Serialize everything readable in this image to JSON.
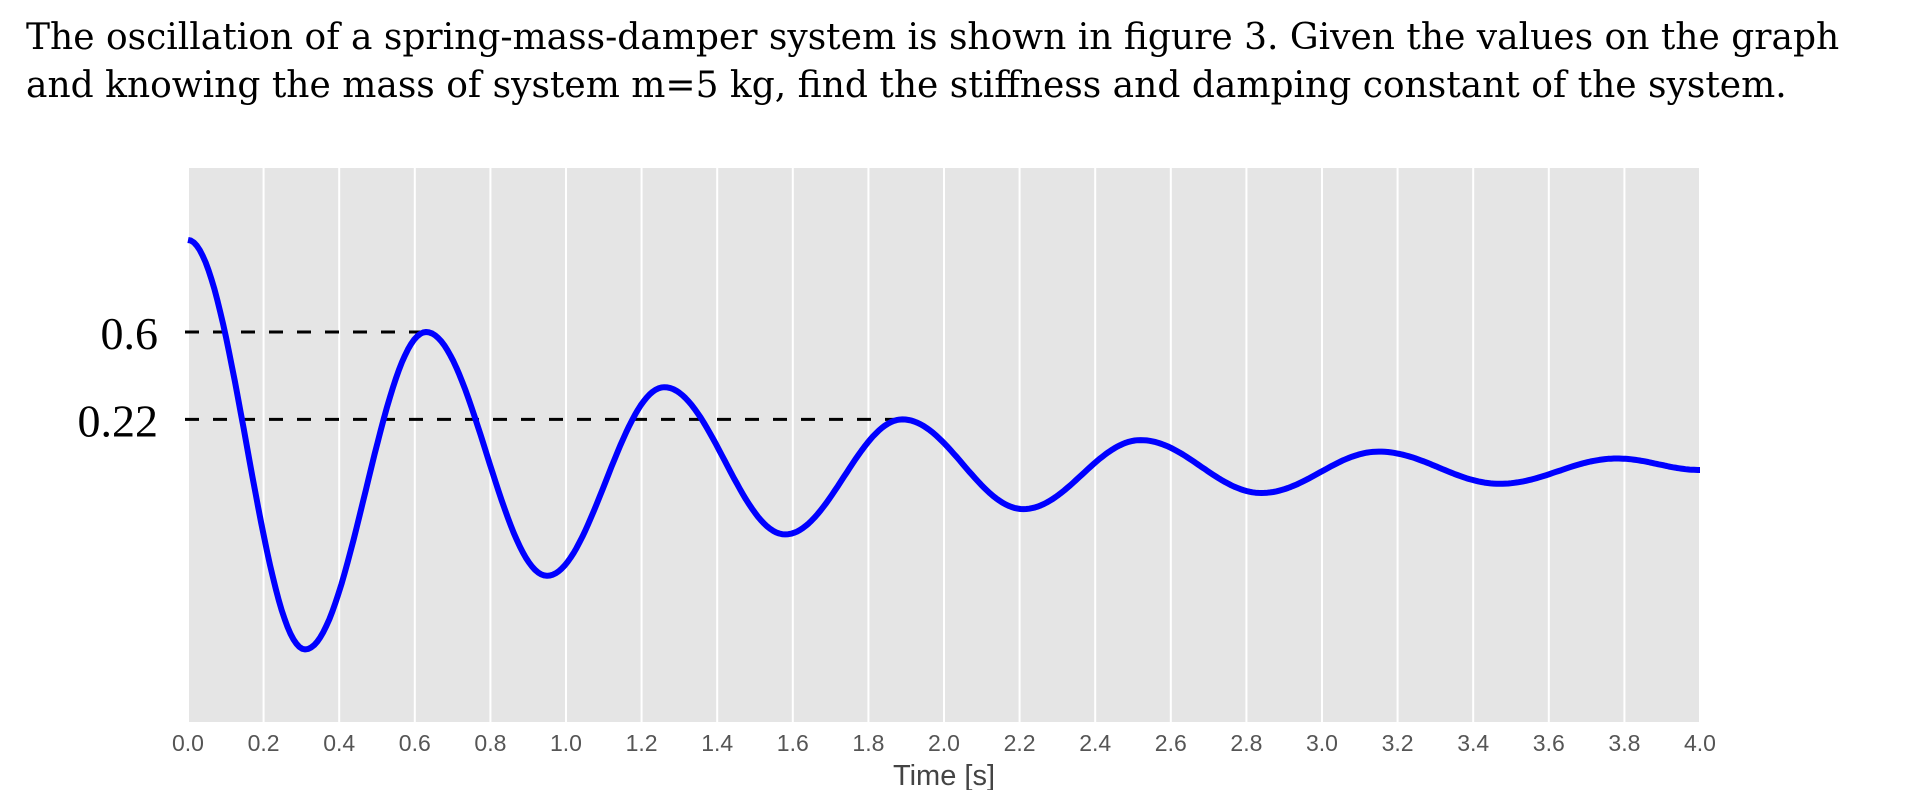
{
  "problem": {
    "line1": "The oscillation of a spring-mass-damper system is shown in figure 3.  Given the values on the graph",
    "line2": "and knowing the mass of system m=5 kg, find the stiffness and damping constant of the system."
  },
  "chart_data": {
    "type": "line",
    "title": "",
    "xlabel": "Time [s]",
    "ylabel": "",
    "xlim": [
      0,
      4
    ],
    "x_ticks": [
      "0.0",
      "0.2",
      "0.4",
      "0.6",
      "0.8",
      "1.0",
      "1.2",
      "1.4",
      "1.6",
      "1.8",
      "2.0",
      "2.2",
      "2.4",
      "2.6",
      "2.8",
      "3.0",
      "3.2",
      "3.4",
      "3.6",
      "3.8",
      "4.0"
    ],
    "grid": true,
    "colors": {
      "line": "#0000ff",
      "background": "#e5e5e5",
      "grid": "#ffffff",
      "annotation": "#000000"
    },
    "series": [
      {
        "x": [
          0.0,
          0.31,
          0.63,
          0.95,
          1.26,
          1.58,
          1.89,
          2.21,
          2.52,
          2.84,
          3.15,
          3.47,
          3.78,
          4.0
        ],
        "y": [
          1.0,
          -0.78,
          0.6,
          -0.46,
          0.36,
          -0.28,
          0.22,
          -0.17,
          0.13,
          -0.1,
          0.08,
          -0.06,
          0.05,
          0.0
        ]
      }
    ],
    "annotations": [
      {
        "label": "0.6",
        "y": 0.6,
        "x_end": 0.63
      },
      {
        "label": "0.22",
        "y": 0.22,
        "x_end": 1.89
      }
    ]
  }
}
